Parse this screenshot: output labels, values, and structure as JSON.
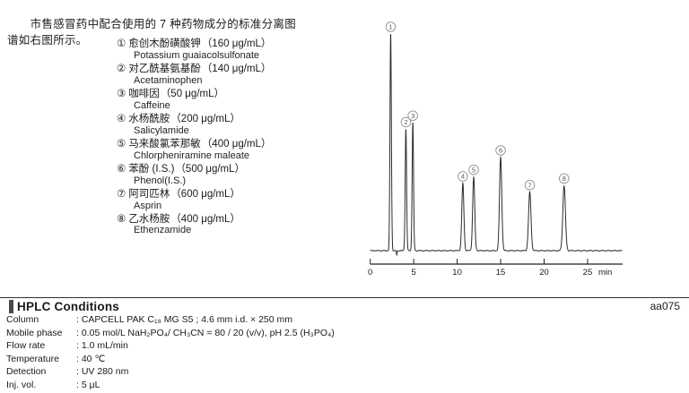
{
  "intro": {
    "text": "　　市售感冒药中配合使用的 7 种药物成分的标准分离图\n谱如右图所示。"
  },
  "compounds": [
    {
      "num": "①",
      "name_zh": "愈创木酚磺酸钾",
      "conc": "（160 μg/mL）",
      "name_en": "Potassium guaiacolsulfonate"
    },
    {
      "num": "②",
      "name_zh": "对乙酰基氨基酚",
      "conc": "（140 μg/mL）",
      "name_en": "Acetaminophen"
    },
    {
      "num": "③",
      "name_zh": "咖啡因",
      "conc": "（50 μg/mL）",
      "name_en": "Caffeine"
    },
    {
      "num": "④",
      "name_zh": "水杨酰胺",
      "conc": "（200 μg/mL）",
      "name_en": "Salicylamide"
    },
    {
      "num": "⑤",
      "name_zh": "马来酸氯苯那敏",
      "conc": "（400 μg/mL）",
      "name_en": "Chlorpheniramine maleate"
    },
    {
      "num": "⑥",
      "name_zh": "苯酚 (I.S.)",
      "conc": "（500 μg/mL）",
      "name_en": "Phenol(I.S.)"
    },
    {
      "num": "⑦",
      "name_zh": "阿司匹林",
      "conc": "（600 μg/mL）",
      "name_en": "Asprin"
    },
    {
      "num": "⑧",
      "name_zh": "乙水杨胺",
      "conc": "（400 μg/mL）",
      "name_en": "Ethenzamide"
    }
  ],
  "chart_data": {
    "type": "line",
    "kind": "HPLC chromatogram",
    "title": "",
    "xlabel": "min",
    "ylabel": "",
    "x_ticks": [
      0,
      5,
      10,
      15,
      20,
      25
    ],
    "xlim": [
      0,
      29
    ],
    "grid": false,
    "peaks": [
      {
        "label": "1",
        "compound": "Potassium guaiacolsulfonate",
        "time_min": 2.35,
        "rel_height": 1.0,
        "sigma_min": 0.08
      },
      {
        "label": "2",
        "compound": "Acetaminophen",
        "time_min": 4.1,
        "rel_height": 0.56,
        "sigma_min": 0.08
      },
      {
        "label": "3",
        "compound": "Caffeine",
        "time_min": 4.9,
        "rel_height": 0.59,
        "sigma_min": 0.08
      },
      {
        "label": "4",
        "compound": "Salicylamide",
        "time_min": 10.65,
        "rel_height": 0.31,
        "sigma_min": 0.12
      },
      {
        "label": "5",
        "compound": "Chlorpheniramine maleate",
        "time_min": 11.9,
        "rel_height": 0.34,
        "sigma_min": 0.12
      },
      {
        "label": "6",
        "compound": "Phenol(I.S.)",
        "time_min": 15.0,
        "rel_height": 0.43,
        "sigma_min": 0.13
      },
      {
        "label": "7",
        "compound": "Asprin",
        "time_min": 18.35,
        "rel_height": 0.27,
        "sigma_min": 0.14
      },
      {
        "label": "8",
        "compound": "Ethenzamide",
        "time_min": 22.3,
        "rel_height": 0.3,
        "sigma_min": 0.15
      }
    ],
    "baseline_dip": {
      "time_min": 3.05,
      "rel_depth": 0.022
    }
  },
  "conditions": {
    "header": "HPLC Conditions",
    "code": "aa075",
    "separator": ": ",
    "rows": [
      {
        "label": "Column",
        "value": "CAPCELL PAK C₁₈ MG S5 ; 4.6 mm i.d. × 250 mm"
      },
      {
        "label": "Mobile phase",
        "value": "0.05 mol/L NaH₂PO₄/ CH₃CN = 80 / 20 (v/v), pH 2.5 (H₃PO₄)"
      },
      {
        "label": "Flow rate",
        "value": "1.0 mL/min"
      },
      {
        "label": "Temperature",
        "value": "40 ℃"
      },
      {
        "label": "Detection",
        "value": "UV 280 nm"
      },
      {
        "label": "Inj. vol.",
        "value": "5 μL"
      }
    ]
  }
}
